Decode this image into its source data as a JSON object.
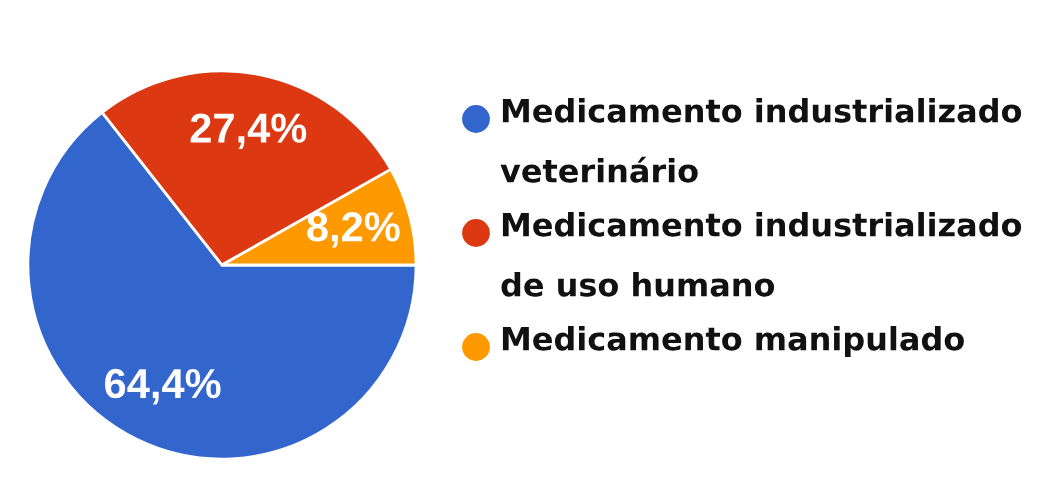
{
  "chart_data": {
    "type": "pie",
    "categories": [
      "Medicamento industrializado veterinário",
      "Medicamento industrializado de uso humano",
      "Medicamento manipulado"
    ],
    "values": [
      64.4,
      27.4,
      8.2
    ],
    "colors": [
      "#3366cc",
      "#dc3912",
      "#ff9900"
    ],
    "value_labels": [
      "64,4%",
      "27,4%",
      "8,2%"
    ],
    "legend": "right"
  }
}
